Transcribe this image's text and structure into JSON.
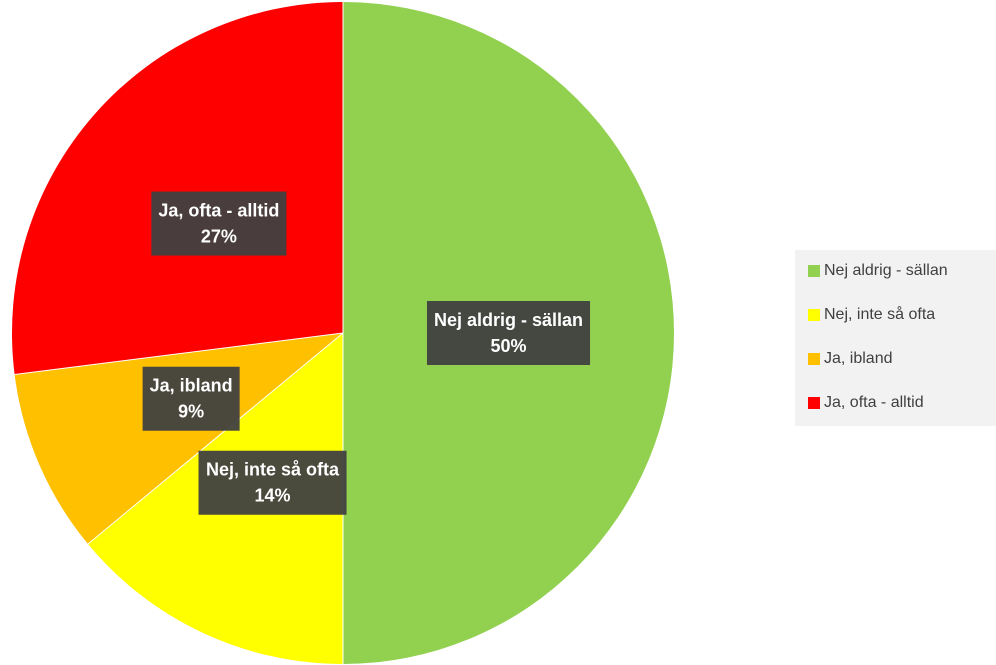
{
  "chart_data": {
    "type": "pie",
    "categories": [
      "Nej aldrig - sällan",
      "Nej, inte så ofta",
      "Ja, ibland",
      "Ja, ofta - alltid"
    ],
    "values": [
      50,
      14,
      9,
      27
    ],
    "value_labels": [
      "50%",
      "14%",
      "9%",
      "27%"
    ],
    "colors": [
      "#92d050",
      "#ffff00",
      "#ffc000",
      "#ff0000"
    ],
    "legend": "right"
  }
}
